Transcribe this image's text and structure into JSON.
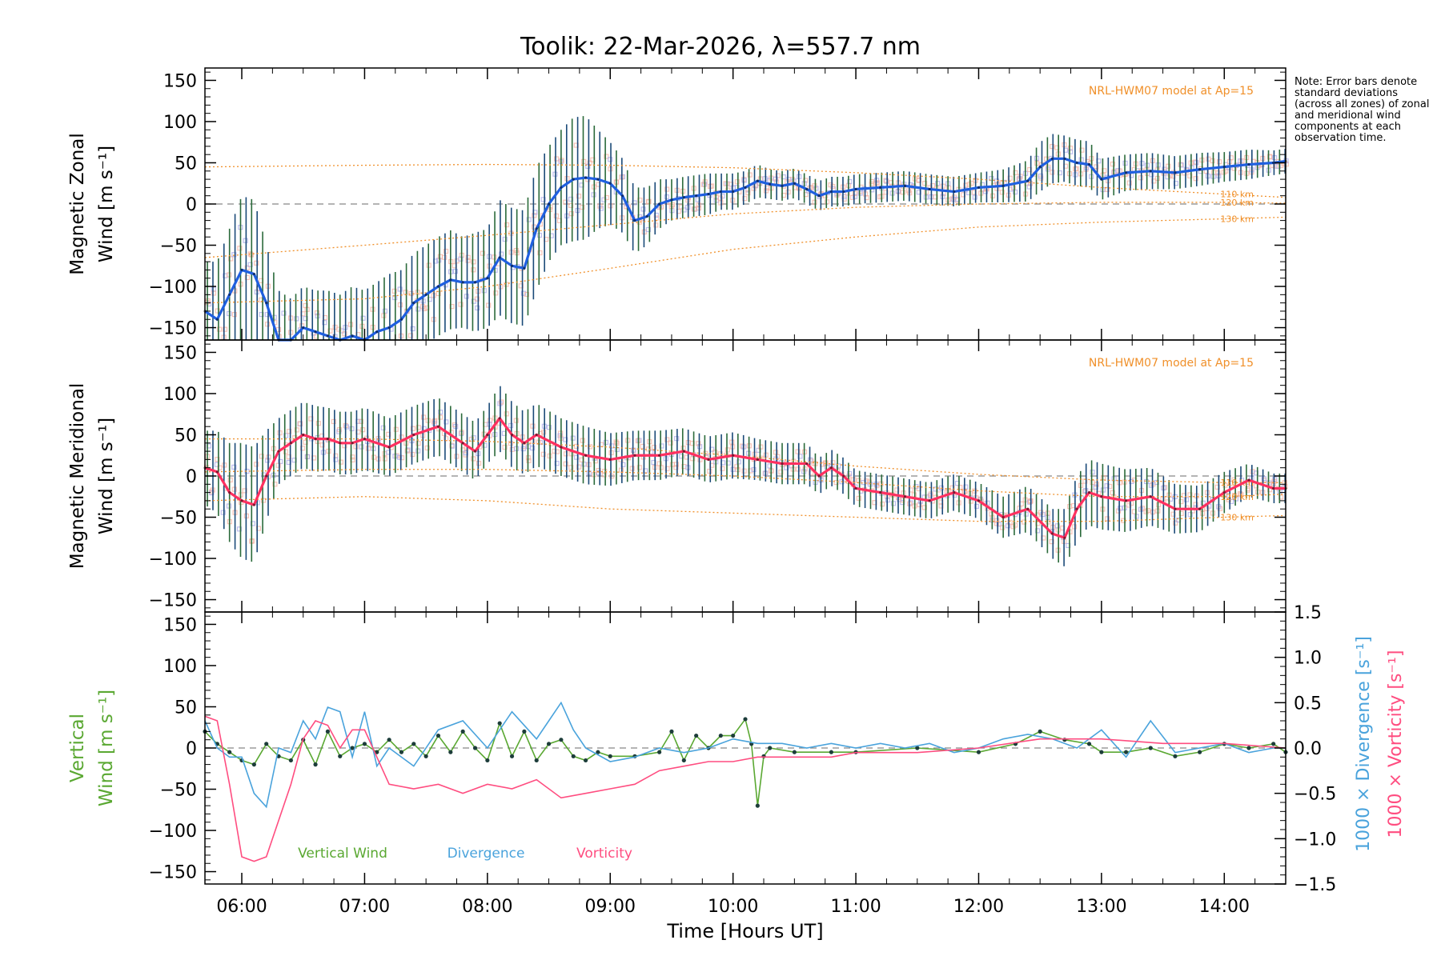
{
  "title": "Toolik: 22-Mar-2026, λ=557.7 nm",
  "note": "Note: Error bars denote standard deviations (across all zones) of zonal and meridional wind components at each observation time.",
  "colors": {
    "zonal": "#1f5fe0",
    "meridional": "#ff3060",
    "vertical": "#5aa832",
    "divergence": "#4aa3dc",
    "vorticity": "#ff4d80",
    "model": "#f0902a",
    "errbar_a": "#1a4a78",
    "errbar_b": "#2a6a3a",
    "zone_a": "#f6b0a0",
    "zone_b": "#a8a8e8"
  },
  "xaxis": {
    "label": "Time [Hours UT]",
    "range": [
      5.7,
      14.5
    ],
    "ticks": [
      6,
      7,
      8,
      9,
      10,
      11,
      12,
      13,
      14
    ],
    "tick_labels": [
      "06:00",
      "07:00",
      "08:00",
      "09:00",
      "10:00",
      "11:00",
      "12:00",
      "13:00",
      "14:00"
    ]
  },
  "chart_data": [
    {
      "type": "line",
      "id": "zonal",
      "ylabel_top": "Magnetic Zonal",
      "ylabel_bottom": "Wind [m s⁻¹]",
      "ylim": [
        -165,
        165
      ],
      "yticks": [
        -150,
        -100,
        -50,
        0,
        50,
        100,
        150
      ],
      "model_label": "NRL-HWM07 model at Ap=15",
      "model_curves": [
        {
          "name": "110 km",
          "x": [
            5.7,
            7,
            8,
            9,
            10,
            11,
            12,
            13,
            14,
            14.5
          ],
          "y": [
            45,
            47,
            48,
            47,
            44,
            38,
            30,
            20,
            12,
            8
          ]
        },
        {
          "name": "120 km",
          "x": [
            5.7,
            7,
            8,
            9,
            10,
            11,
            12,
            13,
            14,
            14.5
          ],
          "y": [
            -65,
            -50,
            -38,
            -25,
            -12,
            -4,
            0,
            2,
            2,
            1
          ]
        },
        {
          "name": "130 km",
          "x": [
            5.7,
            7,
            8,
            9,
            10,
            11,
            12,
            13,
            14,
            14.5
          ],
          "y": [
            -120,
            -115,
            -100,
            -78,
            -55,
            -40,
            -28,
            -22,
            -18,
            -16
          ]
        }
      ],
      "series": [
        {
          "name": "Zonal wind",
          "x": [
            5.7,
            5.8,
            5.9,
            6.0,
            6.1,
            6.2,
            6.3,
            6.4,
            6.5,
            6.6,
            6.7,
            6.8,
            6.9,
            7.0,
            7.1,
            7.2,
            7.3,
            7.4,
            7.5,
            7.6,
            7.7,
            7.8,
            7.9,
            8.0,
            8.1,
            8.2,
            8.3,
            8.4,
            8.5,
            8.6,
            8.7,
            8.8,
            8.9,
            9.0,
            9.1,
            9.2,
            9.3,
            9.4,
            9.5,
            9.6,
            9.7,
            9.8,
            9.9,
            10.0,
            10.1,
            10.2,
            10.3,
            10.4,
            10.5,
            10.6,
            10.7,
            10.8,
            10.9,
            11.0,
            11.2,
            11.4,
            11.6,
            11.8,
            12.0,
            12.2,
            12.4,
            12.5,
            12.6,
            12.7,
            12.8,
            12.9,
            13.0,
            13.2,
            13.4,
            13.6,
            13.8,
            14.0,
            14.2,
            14.4,
            14.5
          ],
          "y": [
            -130,
            -140,
            -110,
            -80,
            -85,
            -120,
            -165,
            -165,
            -150,
            -155,
            -160,
            -165,
            -160,
            -165,
            -155,
            -150,
            -140,
            -120,
            -110,
            -100,
            -92,
            -95,
            -95,
            -90,
            -65,
            -75,
            -78,
            -30,
            0,
            20,
            30,
            32,
            30,
            25,
            10,
            -20,
            -15,
            0,
            5,
            8,
            10,
            12,
            15,
            15,
            20,
            28,
            24,
            22,
            25,
            18,
            10,
            15,
            15,
            18,
            20,
            22,
            18,
            15,
            20,
            22,
            28,
            45,
            55,
            55,
            50,
            48,
            30,
            38,
            40,
            38,
            42,
            45,
            48,
            50,
            52
          ],
          "err": [
            60,
            70,
            80,
            90,
            90,
            70,
            60,
            50,
            50,
            50,
            55,
            55,
            60,
            60,
            60,
            65,
            60,
            60,
            60,
            60,
            60,
            55,
            60,
            60,
            70,
            70,
            70,
            75,
            70,
            70,
            75,
            75,
            60,
            50,
            45,
            40,
            35,
            30,
            25,
            25,
            25,
            25,
            22,
            22,
            20,
            20,
            18,
            18,
            18,
            18,
            18,
            18,
            18,
            18,
            18,
            18,
            18,
            18,
            18,
            20,
            25,
            30,
            30,
            28,
            28,
            28,
            25,
            22,
            22,
            20,
            20,
            18,
            18,
            15,
            15
          ]
        }
      ]
    },
    {
      "type": "line",
      "id": "meridional",
      "ylabel_top": "Magnetic Meridional",
      "ylabel_bottom": "Wind [m s⁻¹]",
      "ylim": [
        -165,
        165
      ],
      "yticks": [
        -150,
        -100,
        -50,
        0,
        50,
        100,
        150
      ],
      "model_label": "NRL-HWM07 model at Ap=15",
      "model_curves": [
        {
          "name": "110 km",
          "x": [
            5.7,
            7,
            8,
            9,
            10,
            11,
            12,
            13,
            14,
            14.5
          ],
          "y": [
            45,
            45,
            42,
            35,
            25,
            12,
            2,
            -5,
            -8,
            -8
          ]
        },
        {
          "name": "120 km",
          "x": [
            5.7,
            7,
            8,
            9,
            10,
            11,
            12,
            13,
            14,
            14.5
          ],
          "y": [
            5,
            8,
            8,
            5,
            0,
            -8,
            -18,
            -25,
            -25,
            -22
          ]
        },
        {
          "name": "130 km",
          "x": [
            5.7,
            7,
            8,
            9,
            10,
            11,
            12,
            13,
            14,
            14.5
          ],
          "y": [
            -30,
            -25,
            -30,
            -40,
            -45,
            -50,
            -55,
            -55,
            -50,
            -48
          ]
        }
      ],
      "series": [
        {
          "name": "Meridional wind",
          "x": [
            5.7,
            5.8,
            5.9,
            6.0,
            6.1,
            6.2,
            6.3,
            6.4,
            6.5,
            6.6,
            6.7,
            6.8,
            6.9,
            7.0,
            7.2,
            7.4,
            7.6,
            7.8,
            7.9,
            8.0,
            8.1,
            8.2,
            8.3,
            8.4,
            8.6,
            8.8,
            9.0,
            9.2,
            9.4,
            9.6,
            9.8,
            10.0,
            10.2,
            10.4,
            10.6,
            10.7,
            10.8,
            10.9,
            11.0,
            11.2,
            11.4,
            11.6,
            11.8,
            12.0,
            12.2,
            12.4,
            12.6,
            12.7,
            12.8,
            12.9,
            13.0,
            13.2,
            13.4,
            13.6,
            13.8,
            14.0,
            14.2,
            14.4,
            14.5
          ],
          "y": [
            10,
            5,
            -20,
            -30,
            -35,
            0,
            30,
            40,
            50,
            45,
            45,
            40,
            40,
            45,
            35,
            50,
            60,
            40,
            30,
            50,
            70,
            50,
            40,
            50,
            35,
            25,
            20,
            25,
            25,
            30,
            20,
            25,
            20,
            15,
            15,
            0,
            10,
            0,
            -15,
            -20,
            -25,
            -30,
            -20,
            -30,
            -50,
            -40,
            -70,
            -75,
            -40,
            -20,
            -25,
            -30,
            -25,
            -40,
            -40,
            -20,
            -5,
            -15,
            -15
          ],
          "err": [
            45,
            50,
            60,
            70,
            70,
            55,
            40,
            40,
            40,
            40,
            38,
            38,
            38,
            38,
            35,
            35,
            35,
            35,
            35,
            35,
            40,
            40,
            38,
            38,
            35,
            35,
            32,
            30,
            30,
            28,
            28,
            28,
            25,
            25,
            25,
            22,
            22,
            22,
            22,
            22,
            22,
            22,
            22,
            22,
            25,
            28,
            30,
            35,
            40,
            40,
            40,
            38,
            35,
            30,
            28,
            25,
            20,
            18,
            18
          ]
        }
      ]
    },
    {
      "type": "line",
      "id": "vertical",
      "ylabel_top": "Vertical",
      "ylabel_bottom": "Wind [m s⁻¹]",
      "ylim": [
        -165,
        165
      ],
      "yticks": [
        -150,
        -100,
        -50,
        0,
        50,
        100,
        150
      ],
      "right_axis": {
        "label_1": "1000 × Divergence [s⁻¹]",
        "label_2": "1000 × Vorticity [s⁻¹]",
        "ylim": [
          -1.5,
          1.5
        ],
        "ticks": [
          -1.5,
          -1.0,
          -0.5,
          0.0,
          0.5,
          1.0,
          1.5
        ],
        "tick_labels": [
          "−1.5",
          "−1.0",
          "−0.5",
          "0.0",
          "0.5",
          "1.0",
          "1.5"
        ]
      },
      "legend": [
        "Vertical Wind",
        "Divergence",
        "Vorticity"
      ],
      "series": [
        {
          "name": "Vertical Wind",
          "axis": "left",
          "x": [
            5.7,
            5.8,
            5.9,
            6.0,
            6.1,
            6.2,
            6.3,
            6.4,
            6.5,
            6.6,
            6.7,
            6.8,
            6.9,
            7.0,
            7.1,
            7.2,
            7.3,
            7.4,
            7.5,
            7.6,
            7.7,
            7.8,
            7.9,
            8.0,
            8.1,
            8.2,
            8.3,
            8.4,
            8.5,
            8.6,
            8.7,
            8.8,
            8.9,
            9.0,
            9.2,
            9.4,
            9.5,
            9.6,
            9.7,
            9.8,
            9.9,
            10.0,
            10.1,
            10.15,
            10.2,
            10.25,
            10.3,
            10.5,
            10.8,
            11.0,
            11.5,
            12.0,
            12.3,
            12.5,
            12.7,
            12.9,
            13.0,
            13.2,
            13.4,
            13.6,
            13.8,
            14.0,
            14.2,
            14.4,
            14.5
          ],
          "y": [
            20,
            5,
            -5,
            -15,
            -20,
            5,
            -10,
            -15,
            10,
            -20,
            20,
            -10,
            0,
            5,
            -5,
            10,
            -5,
            5,
            -10,
            15,
            -5,
            20,
            0,
            -15,
            30,
            -10,
            20,
            -15,
            5,
            10,
            -10,
            -15,
            -5,
            -10,
            -10,
            -5,
            20,
            -15,
            15,
            0,
            15,
            15,
            35,
            5,
            -70,
            -10,
            0,
            -5,
            -5,
            -5,
            0,
            -5,
            5,
            20,
            10,
            5,
            -5,
            -5,
            0,
            -10,
            -5,
            5,
            0,
            5,
            -5
          ]
        },
        {
          "name": "Divergence",
          "axis": "right",
          "x": [
            5.7,
            5.8,
            5.9,
            6.0,
            6.1,
            6.2,
            6.3,
            6.4,
            6.5,
            6.6,
            6.7,
            6.8,
            6.9,
            7.0,
            7.1,
            7.2,
            7.4,
            7.6,
            7.8,
            8.0,
            8.2,
            8.4,
            8.5,
            8.6,
            8.7,
            8.8,
            9.0,
            9.2,
            9.4,
            9.6,
            9.8,
            10.0,
            10.2,
            10.4,
            10.6,
            10.8,
            11.0,
            11.2,
            11.4,
            11.6,
            11.8,
            12.0,
            12.2,
            12.4,
            12.6,
            12.8,
            13.0,
            13.2,
            13.4,
            13.6,
            13.8,
            14.0,
            14.2,
            14.4,
            14.5
          ],
          "y": [
            0.3,
            0.0,
            -0.1,
            -0.1,
            -0.5,
            -0.65,
            0.0,
            -0.05,
            0.3,
            0.1,
            0.45,
            0.4,
            -0.1,
            0.4,
            -0.2,
            0.0,
            -0.2,
            0.2,
            0.3,
            0.0,
            0.4,
            0.1,
            0.3,
            0.5,
            0.2,
            0.0,
            -0.15,
            -0.1,
            0.0,
            -0.05,
            0.0,
            0.1,
            0.05,
            0.05,
            0.0,
            0.05,
            0.0,
            0.05,
            0.0,
            0.05,
            -0.05,
            0.0,
            0.1,
            0.15,
            0.1,
            0.0,
            0.2,
            -0.1,
            0.3,
            -0.05,
            0.0,
            0.05,
            -0.05,
            0.0,
            0.0
          ]
        },
        {
          "name": "Vorticity",
          "axis": "right",
          "x": [
            5.7,
            5.8,
            5.9,
            6.0,
            6.1,
            6.2,
            6.3,
            6.4,
            6.5,
            6.6,
            6.7,
            6.8,
            6.9,
            7.0,
            7.2,
            7.4,
            7.6,
            7.8,
            8.0,
            8.2,
            8.4,
            8.6,
            8.8,
            9.0,
            9.2,
            9.4,
            9.6,
            9.8,
            10.0,
            10.2,
            10.5,
            10.8,
            11.0,
            11.5,
            12.0,
            12.5,
            13.0,
            13.5,
            14.0,
            14.5
          ],
          "y": [
            0.35,
            0.3,
            -0.4,
            -1.2,
            -1.25,
            -1.2,
            -0.8,
            -0.4,
            0.1,
            0.3,
            0.25,
            0.0,
            0.2,
            0.2,
            -0.4,
            -0.45,
            -0.4,
            -0.5,
            -0.4,
            -0.45,
            -0.35,
            -0.55,
            -0.5,
            -0.45,
            -0.4,
            -0.25,
            -0.2,
            -0.15,
            -0.15,
            -0.1,
            -0.1,
            -0.1,
            -0.05,
            -0.05,
            0.0,
            0.1,
            0.1,
            0.05,
            0.05,
            0.0
          ]
        }
      ]
    }
  ]
}
